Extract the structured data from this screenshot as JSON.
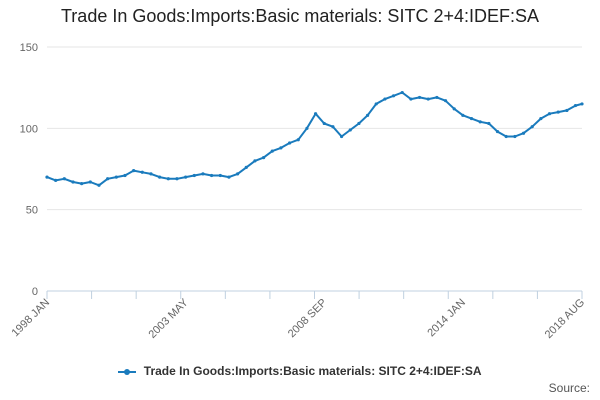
{
  "chart_data": {
    "type": "line",
    "title": "Trade In Goods:Imports:Basic materials: SITC 2+4:IDEF:SA",
    "xlabel": "",
    "ylabel": "",
    "ylim": [
      0,
      150
    ],
    "y_ticks": [
      0,
      50,
      100,
      150
    ],
    "x_range": [
      "1998 JAN",
      "2018 AUG"
    ],
    "x_tick_labels": [
      "1998 JAN",
      "2003 MAY",
      "2008 SEP",
      "2014 JAN",
      "2018 AUG"
    ],
    "grid": true,
    "legend_position": "bottom",
    "series": [
      {
        "name": "Trade In Goods:Imports:Basic materials: SITC 2+4:IDEF:SA",
        "color": "#1a7bbd",
        "points": [
          [
            "1998 JAN",
            70
          ],
          [
            "1998 MAY",
            68
          ],
          [
            "1998 SEP",
            69
          ],
          [
            "1999 JAN",
            67
          ],
          [
            "1999 MAY",
            66
          ],
          [
            "1999 SEP",
            67
          ],
          [
            "2000 JAN",
            65
          ],
          [
            "2000 MAY",
            69
          ],
          [
            "2000 SEP",
            70
          ],
          [
            "2001 JAN",
            71
          ],
          [
            "2001 MAY",
            74
          ],
          [
            "2001 SEP",
            73
          ],
          [
            "2002 JAN",
            72
          ],
          [
            "2002 MAY",
            70
          ],
          [
            "2002 SEP",
            69
          ],
          [
            "2003 JAN",
            69
          ],
          [
            "2003 MAY",
            70
          ],
          [
            "2003 SEP",
            71
          ],
          [
            "2004 JAN",
            72
          ],
          [
            "2004 MAY",
            71
          ],
          [
            "2004 SEP",
            71
          ],
          [
            "2005 JAN",
            70
          ],
          [
            "2005 MAY",
            72
          ],
          [
            "2005 SEP",
            76
          ],
          [
            "2006 JAN",
            80
          ],
          [
            "2006 MAY",
            82
          ],
          [
            "2006 SEP",
            86
          ],
          [
            "2007 JAN",
            88
          ],
          [
            "2007 MAY",
            91
          ],
          [
            "2007 SEP",
            93
          ],
          [
            "2008 JAN",
            100
          ],
          [
            "2008 MAY",
            109
          ],
          [
            "2008 SEP",
            103
          ],
          [
            "2009 JAN",
            101
          ],
          [
            "2009 MAY",
            95
          ],
          [
            "2009 SEP",
            99
          ],
          [
            "2010 JAN",
            103
          ],
          [
            "2010 MAY",
            108
          ],
          [
            "2010 SEP",
            115
          ],
          [
            "2011 JAN",
            118
          ],
          [
            "2011 MAY",
            120
          ],
          [
            "2011 SEP",
            122
          ],
          [
            "2012 JAN",
            118
          ],
          [
            "2012 MAY",
            119
          ],
          [
            "2012 SEP",
            118
          ],
          [
            "2013 JAN",
            119
          ],
          [
            "2013 MAY",
            117
          ],
          [
            "2013 SEP",
            112
          ],
          [
            "2014 JAN",
            108
          ],
          [
            "2014 MAY",
            106
          ],
          [
            "2014 SEP",
            104
          ],
          [
            "2015 JAN",
            103
          ],
          [
            "2015 MAY",
            98
          ],
          [
            "2015 SEP",
            95
          ],
          [
            "2016 JAN",
            95
          ],
          [
            "2016 MAY",
            97
          ],
          [
            "2016 SEP",
            101
          ],
          [
            "2017 JAN",
            106
          ],
          [
            "2017 MAY",
            109
          ],
          [
            "2017 SEP",
            110
          ],
          [
            "2018 JAN",
            111
          ],
          [
            "2018 MAY",
            114
          ],
          [
            "2018 AUG",
            115
          ]
        ]
      }
    ]
  },
  "credits": "Source:"
}
